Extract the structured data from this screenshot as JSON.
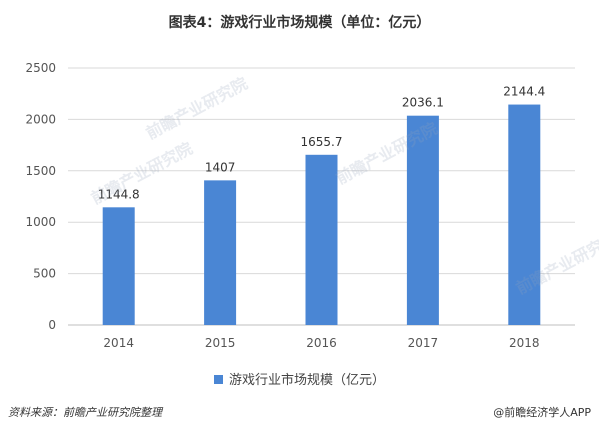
{
  "chart_data": {
    "type": "bar",
    "title": "图表4：游戏行业市场规模（单位：亿元）",
    "categories": [
      "2014",
      "2015",
      "2016",
      "2017",
      "2018"
    ],
    "series": [
      {
        "name": "游戏行业市场规模（亿元）",
        "values": [
          1144.8,
          1407,
          1655.7,
          2036.1,
          2144.4
        ]
      }
    ],
    "data_labels": [
      "1144.8",
      "1407",
      "1655.7",
      "2036.1",
      "2144.4"
    ],
    "y_ticks": [
      "0",
      "500",
      "1000",
      "1500",
      "2000",
      "2500"
    ],
    "ylim": [
      0,
      2500
    ],
    "grid": true,
    "legend_position": "bottom",
    "bar_color": "#4a86d4"
  },
  "footer": {
    "source": "资料来源：前瞻产业研究院整理",
    "brand": "@前瞻经济学人APP"
  },
  "watermark": "前瞻产业研究院"
}
